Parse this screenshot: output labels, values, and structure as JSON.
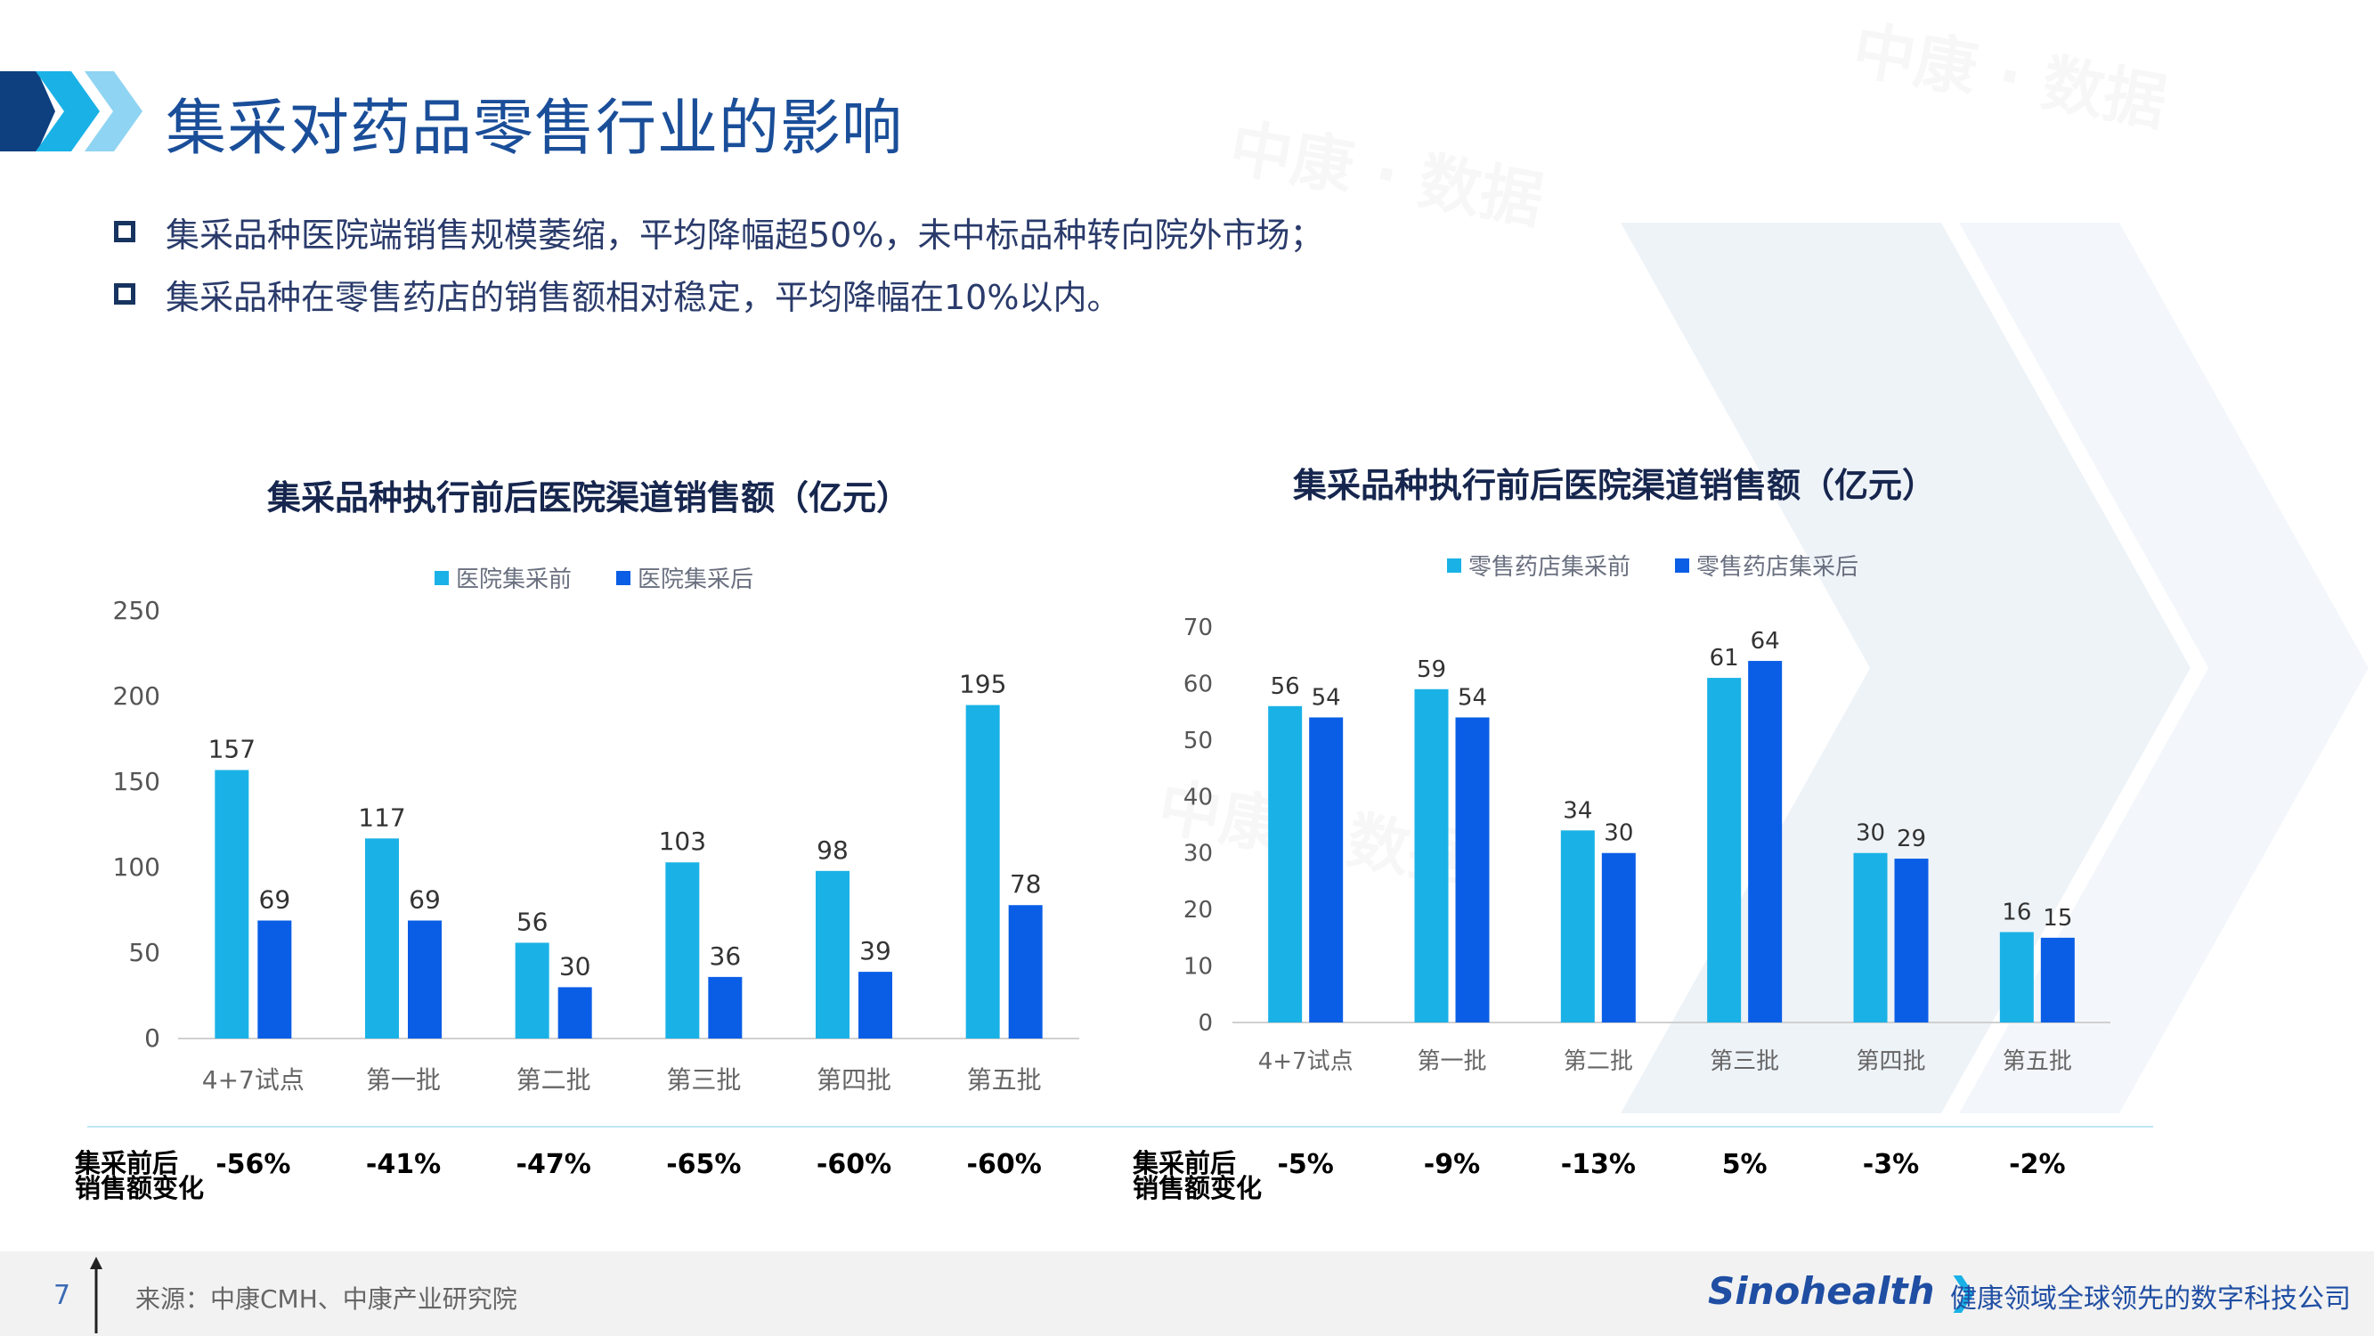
{
  "header": {
    "title": "集采对药品零售行业的影响"
  },
  "bullets": [
    "集采品种医院端销售规模萎缩，平均降幅超50%，未中标品种转向院外市场；",
    "集采品种在零售药店的销售额相对稳定，平均降幅在10%以内。"
  ],
  "colors": {
    "before": "#1ab2e6",
    "after": "#0a5ee6",
    "title": "#1a4e99"
  },
  "chart_data": [
    {
      "type": "bar",
      "title": "集采品种执行前后医院渠道销售额（亿元）",
      "categories": [
        "4+7试点",
        "第一批",
        "第二批",
        "第三批",
        "第四批",
        "第五批"
      ],
      "series": [
        {
          "name": "医院集采前",
          "values": [
            157,
            117,
            56,
            103,
            98,
            195
          ]
        },
        {
          "name": "医院集采后",
          "values": [
            69,
            69,
            30,
            36,
            39,
            78
          ]
        }
      ],
      "yticks": [
        0,
        50,
        100,
        150,
        200,
        250
      ],
      "ylim": [
        0,
        250
      ],
      "legend_position": "top",
      "change_label_line1": "集采前后",
      "change_label_line2": "销售额变化",
      "changes": [
        "-56%",
        "-41%",
        "-47%",
        "-65%",
        "-60%",
        "-60%"
      ]
    },
    {
      "type": "bar",
      "title": "集采品种执行前后医院渠道销售额（亿元）",
      "categories": [
        "4+7试点",
        "第一批",
        "第二批",
        "第三批",
        "第四批",
        "第五批"
      ],
      "series": [
        {
          "name": "零售药店集采前",
          "values": [
            56,
            59,
            34,
            61,
            30,
            16
          ]
        },
        {
          "name": "零售药店集采后",
          "values": [
            54,
            54,
            30,
            64,
            29,
            15
          ]
        }
      ],
      "yticks": [
        0,
        10,
        20,
        30,
        40,
        50,
        60,
        70
      ],
      "ylim": [
        0,
        70
      ],
      "legend_position": "top",
      "change_label_line1": "集采前后",
      "change_label_line2": "销售额变化",
      "changes": [
        "-5%",
        "-9%",
        "-13%",
        "5%",
        "-3%",
        "-2%"
      ]
    }
  ],
  "footer": {
    "page_number": "7",
    "source": "来源：中康CMH、中康产业研究院",
    "logo": "Sinohealth",
    "slogan": "健康领域全球领先的数字科技公司"
  }
}
